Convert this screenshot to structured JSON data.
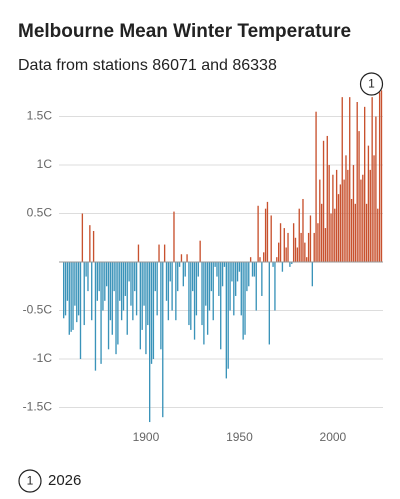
{
  "chart_data": {
    "type": "bar",
    "title": "Melbourne Mean Winter Temperature",
    "subtitle": "Data from stations 86071 and 86338",
    "x": [
      1856,
      1857,
      1858,
      1859,
      1860,
      1861,
      1862,
      1863,
      1864,
      1865,
      1866,
      1867,
      1868,
      1869,
      1870,
      1871,
      1872,
      1873,
      1874,
      1875,
      1876,
      1877,
      1878,
      1879,
      1880,
      1881,
      1882,
      1883,
      1884,
      1885,
      1886,
      1887,
      1888,
      1889,
      1890,
      1891,
      1892,
      1893,
      1894,
      1895,
      1896,
      1897,
      1898,
      1899,
      1900,
      1901,
      1902,
      1903,
      1904,
      1905,
      1906,
      1907,
      1908,
      1909,
      1910,
      1911,
      1912,
      1913,
      1914,
      1915,
      1916,
      1917,
      1918,
      1919,
      1920,
      1921,
      1922,
      1923,
      1924,
      1925,
      1926,
      1927,
      1928,
      1929,
      1930,
      1931,
      1932,
      1933,
      1934,
      1935,
      1936,
      1937,
      1938,
      1939,
      1940,
      1941,
      1942,
      1943,
      1944,
      1945,
      1946,
      1947,
      1948,
      1949,
      1950,
      1951,
      1952,
      1953,
      1954,
      1955,
      1956,
      1957,
      1958,
      1959,
      1960,
      1961,
      1962,
      1963,
      1964,
      1965,
      1966,
      1967,
      1968,
      1969,
      1970,
      1971,
      1972,
      1973,
      1974,
      1975,
      1976,
      1977,
      1978,
      1979,
      1980,
      1981,
      1982,
      1983,
      1984,
      1985,
      1986,
      1987,
      1988,
      1989,
      1990,
      1991,
      1992,
      1993,
      1994,
      1995,
      1996,
      1997,
      1998,
      1999,
      2000,
      2001,
      2002,
      2003,
      2004,
      2005,
      2006,
      2007,
      2008,
      2009,
      2010,
      2011,
      2012,
      2013,
      2014,
      2015,
      2016,
      2017,
      2018,
      2019,
      2020,
      2021,
      2022,
      2023,
      2024,
      2025,
      2026
    ],
    "values": [
      -0.58,
      -0.55,
      -0.4,
      -0.75,
      -0.72,
      -0.7,
      -0.45,
      -0.62,
      -0.55,
      -1.0,
      0.5,
      -0.65,
      -0.15,
      -0.3,
      0.38,
      -0.6,
      0.32,
      -1.12,
      -0.4,
      -0.3,
      -1.05,
      -0.5,
      -0.4,
      -0.25,
      -0.9,
      -0.6,
      -0.75,
      -0.3,
      -0.95,
      -0.85,
      -0.4,
      -0.6,
      -0.5,
      -0.35,
      -0.75,
      -0.2,
      -0.45,
      -0.6,
      -0.3,
      -0.55,
      0.18,
      -0.9,
      -0.7,
      -0.45,
      -0.95,
      -0.65,
      -1.65,
      -1.05,
      -1.0,
      -0.3,
      -0.55,
      0.18,
      -0.9,
      -1.6,
      0.18,
      -0.4,
      -0.6,
      -0.2,
      -0.5,
      0.52,
      -0.6,
      -0.3,
      -0.05,
      0.08,
      -0.25,
      -0.15,
      0.08,
      -0.65,
      -0.7,
      -0.3,
      -0.8,
      -0.55,
      -0.15,
      0.22,
      -0.65,
      -0.85,
      -0.45,
      -0.75,
      -0.5,
      -0.3,
      -0.6,
      -0.05,
      -0.15,
      -0.35,
      -0.9,
      -0.25,
      -0.05,
      -1.2,
      -1.1,
      -0.5,
      -0.2,
      -0.55,
      -0.35,
      -0.2,
      -0.1,
      -0.55,
      -0.8,
      -0.75,
      -0.3,
      -0.25,
      0.05,
      -0.15,
      -0.15,
      -0.5,
      0.58,
      0.05,
      -0.35,
      0.1,
      0.55,
      0.62,
      -0.85,
      0.48,
      -0.05,
      -0.5,
      0.05,
      0.2,
      0.4,
      -0.1,
      0.35,
      0.15,
      0.3,
      -0.05,
      -0.02,
      0.4,
      0.25,
      0.15,
      0.55,
      0.3,
      0.65,
      0.2,
      0.05,
      0.3,
      0.48,
      -0.25,
      0.3,
      1.55,
      0.4,
      0.85,
      0.6,
      1.25,
      0.35,
      1.3,
      1.0,
      0.5,
      0.9,
      0.55,
      0.95,
      0.7,
      0.8,
      1.7,
      0.85,
      1.1,
      0.95,
      1.7,
      0.65,
      1.0,
      0.6,
      1.65,
      1.35,
      0.85,
      0.9,
      1.6,
      0.6,
      1.2,
      0.95,
      1.7,
      1.1,
      1.5,
      0.55,
      1.75,
      1.77
    ],
    "colors": {
      "positive": "#c8512e",
      "negative": "#3a93b9"
    },
    "xlim": [
      1853.5,
      2026.8
    ],
    "xticks": [
      1900,
      1950,
      2000
    ],
    "ylim": [
      -1.75,
      1.85
    ],
    "yticks": [
      {
        "value": 1.5,
        "label": "1.5C"
      },
      {
        "value": 1,
        "label": "1C"
      },
      {
        "value": 0.5,
        "label": "0.5C"
      },
      {
        "value": -0.5,
        "label": "-0.5C"
      },
      {
        "value": -1,
        "label": "-1C"
      },
      {
        "value": -1.5,
        "label": "-1.5C"
      }
    ],
    "grid": true,
    "annotations": [
      {
        "label": "1",
        "x": 2026
      }
    ]
  }
}
